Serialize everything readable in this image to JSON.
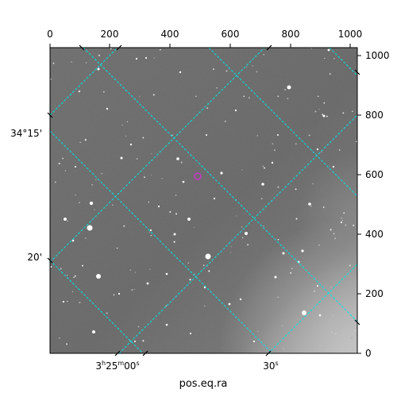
{
  "figure": {
    "xlabel": "pos.eq.ra",
    "pixel_axes": {
      "x_ticks": [
        "0",
        "200",
        "400",
        "600",
        "800",
        "1000"
      ],
      "y_ticks": [
        "0",
        "200",
        "400",
        "600",
        "800",
        "1000"
      ]
    },
    "world_axes": {
      "ra_ticks": [
        {
          "h": "3",
          "m": "25",
          "s": "00"
        },
        {
          "h": "",
          "m": "",
          "s": "30"
        }
      ],
      "dec_ticks": [
        "34°15'",
        "20'"
      ]
    },
    "colors": {
      "grid": "#00e5e5",
      "marker": "#cc33cc",
      "frame": "#000000"
    }
  }
}
